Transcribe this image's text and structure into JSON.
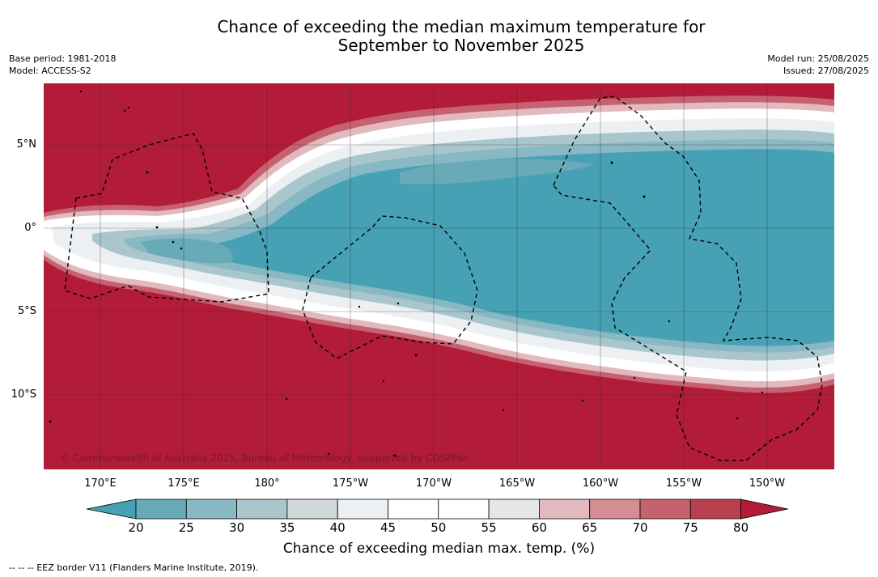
{
  "title": {
    "line1": "Chance of exceeding the median maximum temperature for",
    "line2": "September to November 2025"
  },
  "meta_left": {
    "base_period": "Base period: 1981-2018",
    "model": "Model: ACCESS-S2"
  },
  "meta_right": {
    "model_run": "Model run: 25/08/2025",
    "issued": "Issued: 27/08/2025"
  },
  "map": {
    "lat_labels": [
      "5°N",
      "0°",
      "5°S",
      "10°S"
    ],
    "lon_labels": [
      "170°E",
      "175°E",
      "180°",
      "175°W",
      "170°W",
      "165°W",
      "160°W",
      "155°W",
      "150°W"
    ],
    "copyright": "© Commonwealth of Australia 2025, Bureau of Meteorology, supported by COSPPac",
    "colors": {
      "high": "#b21c38",
      "low": "#47a1b4",
      "neutral": "#ffffff"
    }
  },
  "colorbar": {
    "ticks": [
      "20",
      "25",
      "30",
      "35",
      "40",
      "45",
      "50",
      "55",
      "60",
      "65",
      "70",
      "75",
      "80"
    ],
    "colors": [
      "#47a1b4",
      "#68aab8",
      "#88b8c4",
      "#a8c6cc",
      "#cfd8da",
      "#ecf0f2",
      "#ffffff",
      "#ffffff",
      "#e6e6e6",
      "#e2b9bf",
      "#d58c93",
      "#c6626f",
      "#ba3f4e",
      "#b21c38"
    ],
    "label": "Chance of exceeding median max. temp. (%)"
  },
  "legend_note": "--  --  -- EEZ border V11 (Flanders Marine Institute, 2019)."
}
